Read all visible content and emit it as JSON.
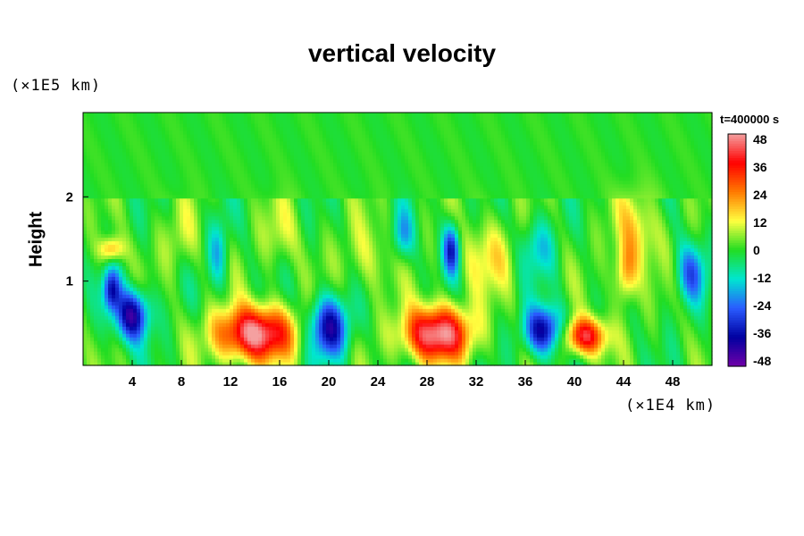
{
  "chart_data": {
    "type": "heatmap",
    "title": "vertical velocity",
    "ylabel": "Height",
    "y_unit": "(×1E5 km)",
    "x_unit": "(×1E4 km)",
    "time_label": "t=400000 s",
    "x_ticks": [
      "4",
      "8",
      "12",
      "16",
      "20",
      "24",
      "28",
      "32",
      "36",
      "40",
      "44",
      "48"
    ],
    "x_tick_values": [
      4,
      8,
      12,
      16,
      20,
      24,
      28,
      32,
      36,
      40,
      44,
      48
    ],
    "y_ticks": [
      "1",
      "2"
    ],
    "y_tick_values": [
      1,
      2
    ],
    "xlim": [
      0,
      51.2
    ],
    "ylim": [
      0,
      3
    ],
    "colorbar": {
      "ticks": [
        "48",
        "36",
        "24",
        "12",
        "0",
        "-12",
        "-24",
        "-36",
        "-48"
      ],
      "values": [
        48,
        36,
        24,
        12,
        0,
        -12,
        -24,
        -36,
        -48
      ],
      "range": [
        -48,
        48
      ],
      "colors": [
        "#f4a0a0",
        "#ff0000",
        "#ff7a00",
        "#ffff40",
        "#22dd22",
        "#00e6d0",
        "#2a5cff",
        "#0000a0",
        "#7000a8"
      ]
    },
    "features": [
      {
        "x": 14.0,
        "y": 0.38,
        "value": 48,
        "sx": 3.2,
        "sy": 0.32
      },
      {
        "x": 28.8,
        "y": 0.38,
        "value": 48,
        "sx": 2.8,
        "sy": 0.32
      },
      {
        "x": 40.8,
        "y": 0.35,
        "value": 40,
        "sx": 1.8,
        "sy": 0.22
      },
      {
        "x": 4.0,
        "y": 0.6,
        "value": -40,
        "sx": 1.4,
        "sy": 0.3
      },
      {
        "x": 2.3,
        "y": 0.9,
        "value": -30,
        "sx": 0.7,
        "sy": 0.25
      },
      {
        "x": 20.0,
        "y": 0.45,
        "value": -38,
        "sx": 1.6,
        "sy": 0.35
      },
      {
        "x": 37.5,
        "y": 0.42,
        "value": -38,
        "sx": 1.6,
        "sy": 0.28
      },
      {
        "x": 30.0,
        "y": 1.38,
        "value": -32,
        "sx": 0.7,
        "sy": 0.3
      },
      {
        "x": 2.3,
        "y": 1.38,
        "value": 22,
        "sx": 1.0,
        "sy": 0.15
      },
      {
        "x": 44.2,
        "y": 1.1,
        "value": 22,
        "sx": 0.9,
        "sy": 0.35
      },
      {
        "x": 11.0,
        "y": 1.35,
        "value": -16,
        "sx": 0.8,
        "sy": 0.4
      },
      {
        "x": 16.0,
        "y": 1.55,
        "value": 10,
        "sx": 1.5,
        "sy": 0.4
      },
      {
        "x": 23.0,
        "y": 1.3,
        "value": 10,
        "sx": 2.0,
        "sy": 0.45
      },
      {
        "x": 33.0,
        "y": 1.3,
        "value": 12,
        "sx": 2.5,
        "sy": 0.45
      },
      {
        "x": 45.0,
        "y": 1.6,
        "value": 14,
        "sx": 2.0,
        "sy": 0.45
      },
      {
        "x": 8.0,
        "y": 1.5,
        "value": 9,
        "sx": 1.5,
        "sy": 0.4
      },
      {
        "x": 49.5,
        "y": 1.1,
        "value": -22,
        "sx": 1.2,
        "sy": 0.35
      },
      {
        "x": 26.0,
        "y": 1.55,
        "value": -18,
        "sx": 0.9,
        "sy": 0.3
      },
      {
        "x": 37.0,
        "y": 1.4,
        "value": -14,
        "sx": 1.5,
        "sy": 0.35
      }
    ]
  }
}
